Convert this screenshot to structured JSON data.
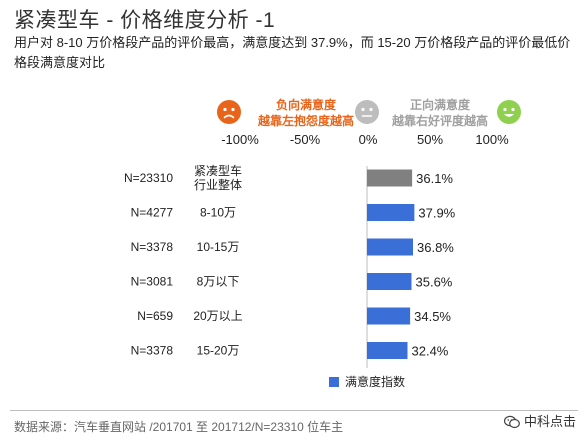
{
  "title": "紧凑型车 - 价格维度分析 -1",
  "subtitle": "用户对 8-10 万价格段产品的评价最高，满意度达到 37.9%，而 15-20 万价格段产品的评价最低价格段满意度对比",
  "scale": {
    "negative_line1": "负向满意度",
    "negative_line2": "越靠左抱怨度越高",
    "positive_line1": "正向满意度",
    "positive_line2": "越靠右好评度越高",
    "ticks": [
      "-100%",
      "-50%",
      "0%",
      "50%",
      "100%"
    ],
    "colors": {
      "negative": "#e8641a",
      "neutral": "#bdbdbd",
      "positive": "#8fd14f"
    },
    "icons": [
      "sad-face-icon",
      "neutral-face-icon",
      "happy-face-icon"
    ]
  },
  "chart_data": {
    "type": "bar",
    "orientation": "horizontal",
    "xlim": [
      -100,
      100
    ],
    "categories": [
      "紧凑型车行业整体",
      "8-10万",
      "10-15万",
      "8万以下",
      "20万以上",
      "15-20万"
    ],
    "category_lines": [
      [
        "紧凑型车",
        "行业整体"
      ],
      [
        "8-10万"
      ],
      [
        "10-15万"
      ],
      [
        "8万以下"
      ],
      [
        "20万以上"
      ],
      [
        "15-20万"
      ]
    ],
    "sample_sizes": [
      "N=23310",
      "N=4277",
      "N=3378",
      "N=3081",
      "N=659",
      "N=3378"
    ],
    "values": [
      36.1,
      37.9,
      36.8,
      35.6,
      34.5,
      32.4
    ],
    "value_labels": [
      "36.1%",
      "37.9%",
      "36.8%",
      "35.6%",
      "34.5%",
      "32.4%"
    ],
    "bar_colors": [
      "#808080",
      "#3b6fd8",
      "#3b6fd8",
      "#3b6fd8",
      "#3b6fd8",
      "#3b6fd8"
    ],
    "series": [
      {
        "name": "满意度指数"
      }
    ]
  },
  "source": "数据来源：汽车垂直网站 /201701 至 201712/N=23310 位车主",
  "brand": "中科点击"
}
